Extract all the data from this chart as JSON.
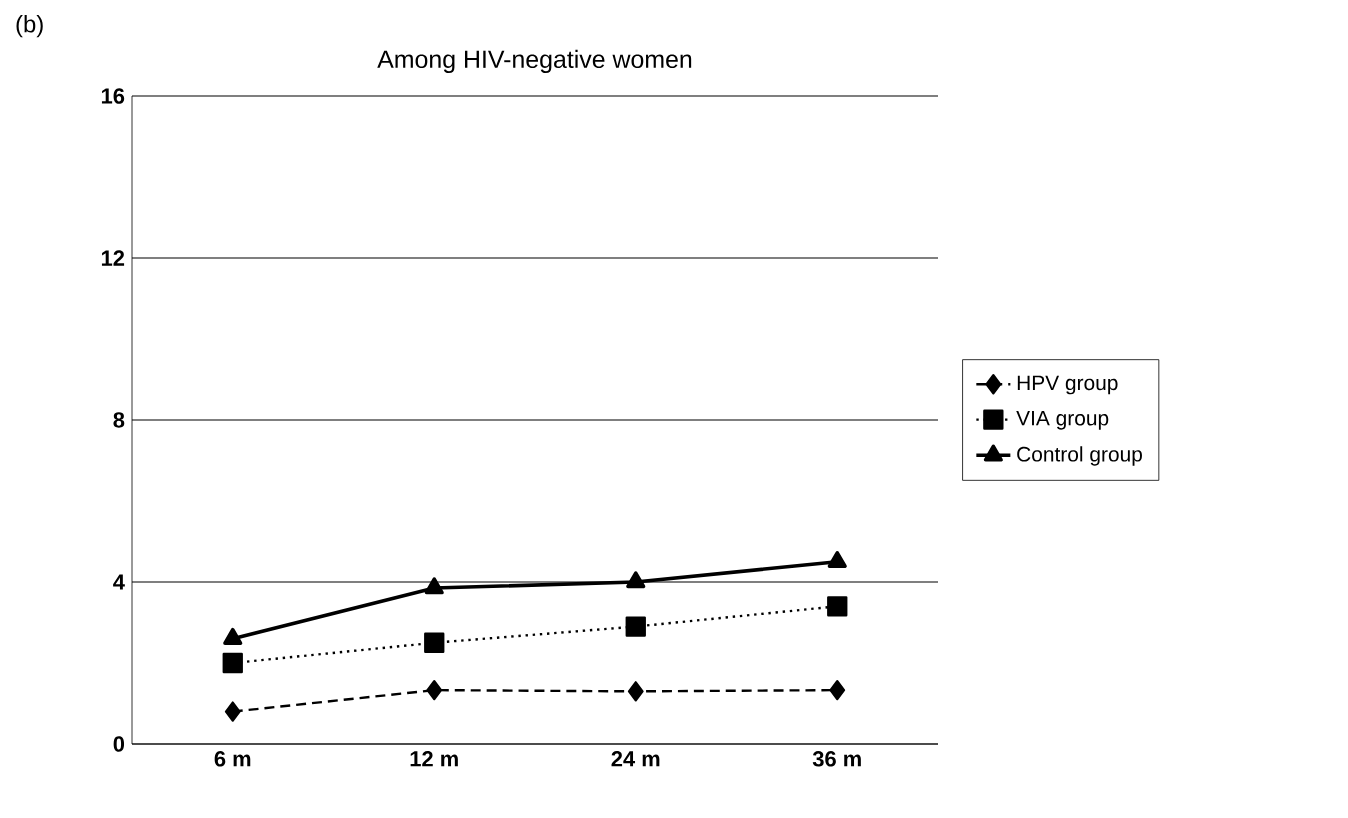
{
  "chart_data": {
    "type": "line",
    "title": "Among HIV-negative women",
    "annotations": [
      "(b)"
    ],
    "categories": [
      "6 m",
      "12 m",
      "24 m",
      "36 m"
    ],
    "series": [
      {
        "name": "HPV group",
        "color": "#000000",
        "values": [
          0.8,
          1.33,
          1.3,
          1.33
        ],
        "marker": "diamond",
        "line_style": "dashed"
      },
      {
        "name": "VIA group",
        "color": "#000000",
        "values": [
          2.0,
          2.5,
          2.9,
          3.4
        ],
        "marker": "square",
        "line_style": "dotted"
      },
      {
        "name": "Control group",
        "color": "#000000",
        "values": [
          2.6,
          3.85,
          4.0,
          4.5
        ],
        "marker": "triangle",
        "line_style": "solid"
      }
    ],
    "ylim": [
      0,
      16
    ],
    "yticks": [
      0,
      4,
      8,
      12,
      16
    ],
    "grid": "y",
    "legend": "right"
  }
}
